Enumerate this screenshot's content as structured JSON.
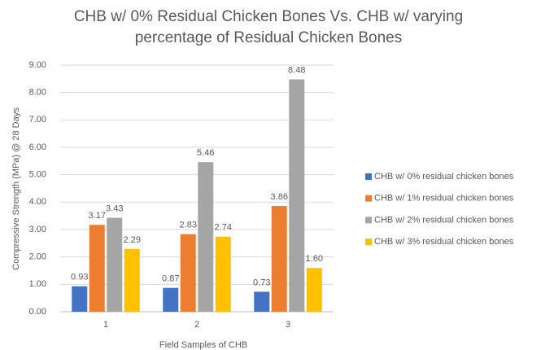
{
  "chart_data": {
    "type": "bar",
    "title": "CHB w/ 0% Residual Chicken Bones Vs. CHB w/ varying percentage of Residual Chicken Bones",
    "x_label": "Field Samples of CHB",
    "y_label": "Compressive Strength (MPa) @ 28 Days",
    "categories": [
      "1",
      "2",
      "3"
    ],
    "series": [
      {
        "name": "CHB w/ 0% residual chicken bones",
        "color": "#4472c4",
        "values": [
          0.93,
          0.87,
          0.73
        ]
      },
      {
        "name": "CHB w/ 1% residual chicken bones",
        "color": "#ed7d31",
        "values": [
          3.17,
          2.83,
          3.86
        ]
      },
      {
        "name": "CHB w/ 2% residual chicken bones",
        "color": "#a5a5a5",
        "values": [
          3.43,
          5.46,
          8.48
        ]
      },
      {
        "name": "CHB w/ 3% residual chicken bones",
        "color": "#ffc000",
        "values": [
          2.29,
          2.74,
          1.6
        ],
        "value_labels": [
          "2.29",
          "2.74",
          "1.60"
        ]
      }
    ],
    "ylim": [
      0,
      9
    ],
    "yticks": [
      {
        "value": 0,
        "label": "0.00"
      },
      {
        "value": 1,
        "label": "1.00"
      },
      {
        "value": 2,
        "label": "2.00"
      },
      {
        "value": 3,
        "label": "3.00"
      },
      {
        "value": 4,
        "label": "4.00"
      },
      {
        "value": 5,
        "label": "5.00"
      },
      {
        "value": 6,
        "label": "6.00"
      },
      {
        "value": 7,
        "label": "7.00"
      },
      {
        "value": 8,
        "label": "8.00"
      },
      {
        "value": 9,
        "label": "9.00"
      }
    ],
    "grid": true,
    "legend": "right"
  }
}
